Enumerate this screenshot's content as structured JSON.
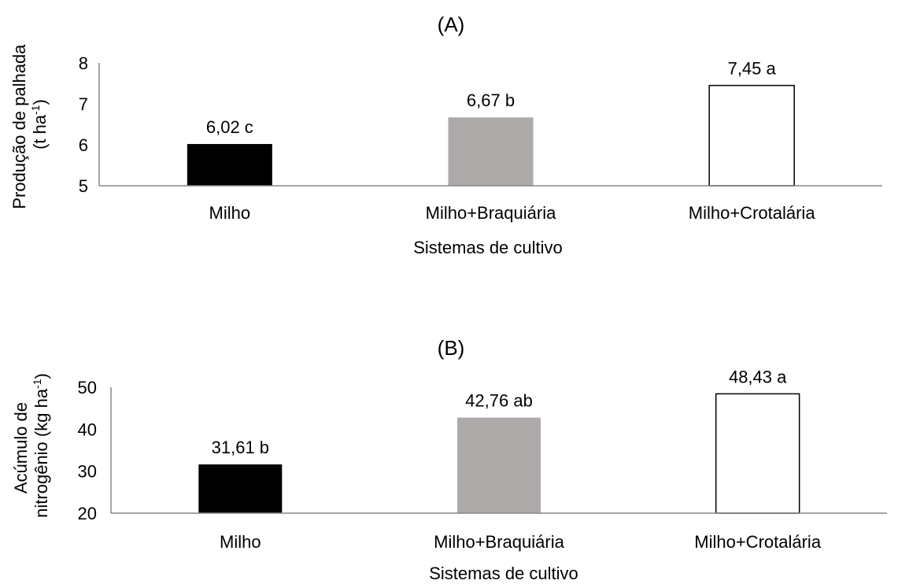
{
  "chart_data": [
    {
      "type": "bar",
      "title": "(A)",
      "categories": [
        "Milho",
        "Milho+Braquiária",
        "Milho+Crotalária"
      ],
      "values": [
        6.02,
        6.67,
        7.45
      ],
      "data_labels": [
        "6,02 c",
        "6,67 b",
        "7,45 a"
      ],
      "colors": [
        "#000000",
        "#aeaaaa",
        "#ffffff"
      ],
      "xlabel": "Sistemas de cultivo",
      "ylabel_lines": [
        "Produção de palhada",
        "(t ha-1)"
      ],
      "ylabel_parts": {
        "line2_pre": "(t ha",
        "sup": "-1",
        "line2_post": ")"
      },
      "ylim": [
        5,
        8
      ],
      "yticks": [
        5,
        6,
        7,
        8
      ],
      "grid": false
    },
    {
      "type": "bar",
      "title": "(B)",
      "categories": [
        "Milho",
        "Milho+Braquiária",
        "Milho+Crotalária"
      ],
      "values": [
        31.61,
        42.76,
        48.43
      ],
      "data_labels": [
        "31,61 b",
        "42,76 ab",
        "48,43 a"
      ],
      "colors": [
        "#000000",
        "#aeaaaa",
        "#ffffff"
      ],
      "xlabel": "Sistemas de cultivo",
      "ylabel_lines": [
        "Acúmulo de",
        "nitrogênio (kg ha-1)"
      ],
      "ylabel_parts": {
        "line2_pre": "nitrogênio  (kg ha",
        "sup": "-1",
        "line2_post": ")"
      },
      "ylim": [
        20,
        50
      ],
      "yticks": [
        20,
        30,
        40,
        50
      ],
      "grid": false
    }
  ]
}
